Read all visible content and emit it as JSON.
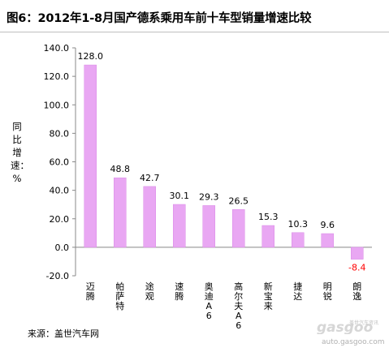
{
  "header": {
    "title": "图6：2012年1-8月国产德系乘用车前十车型销量增速比较"
  },
  "chart_data": {
    "type": "bar",
    "title": "图6：2012年1-8月国产德系乘用车前十车型销量增速比较",
    "ylabel": "同比增速：%",
    "xlabel": "",
    "categories": [
      "迈腾",
      "帕萨特",
      "途观",
      "速腾",
      "奥迪A6",
      "高尔夫A6",
      "新宝来",
      "捷达",
      "明锐",
      "朗逸"
    ],
    "values": [
      128.0,
      48.8,
      42.7,
      30.1,
      29.3,
      26.5,
      15.3,
      10.3,
      9.6,
      -8.4
    ],
    "value_labels": [
      "128.0",
      "48.8",
      "42.7",
      "30.1",
      "29.3",
      "26.5",
      "15.3",
      "10.3",
      "9.6",
      "-8.4"
    ],
    "ylim": [
      -20,
      140
    ],
    "yticks": [
      -20,
      0,
      20,
      40,
      60,
      80,
      100,
      120,
      140
    ],
    "ytick_labels": [
      "-20.0",
      "0.0",
      "20.0",
      "40.0",
      "60.0",
      "80.0",
      "100.0",
      "120.0",
      "140.0"
    ],
    "grid": false,
    "legend": "none",
    "colors": {
      "bar": "#e9a7f3",
      "bar_edge": "#d98ae6",
      "negative_label": "#ff0000",
      "label": "#000000",
      "axis": "#888888"
    }
  },
  "footer": {
    "source": "来源：盖世汽车网"
  },
  "watermark": {
    "logo": "gasgoo",
    "small": "盖世汽车资讯",
    "url": "auto.gasgoo.com",
    "icon": "gasgoo-logo-icon"
  }
}
